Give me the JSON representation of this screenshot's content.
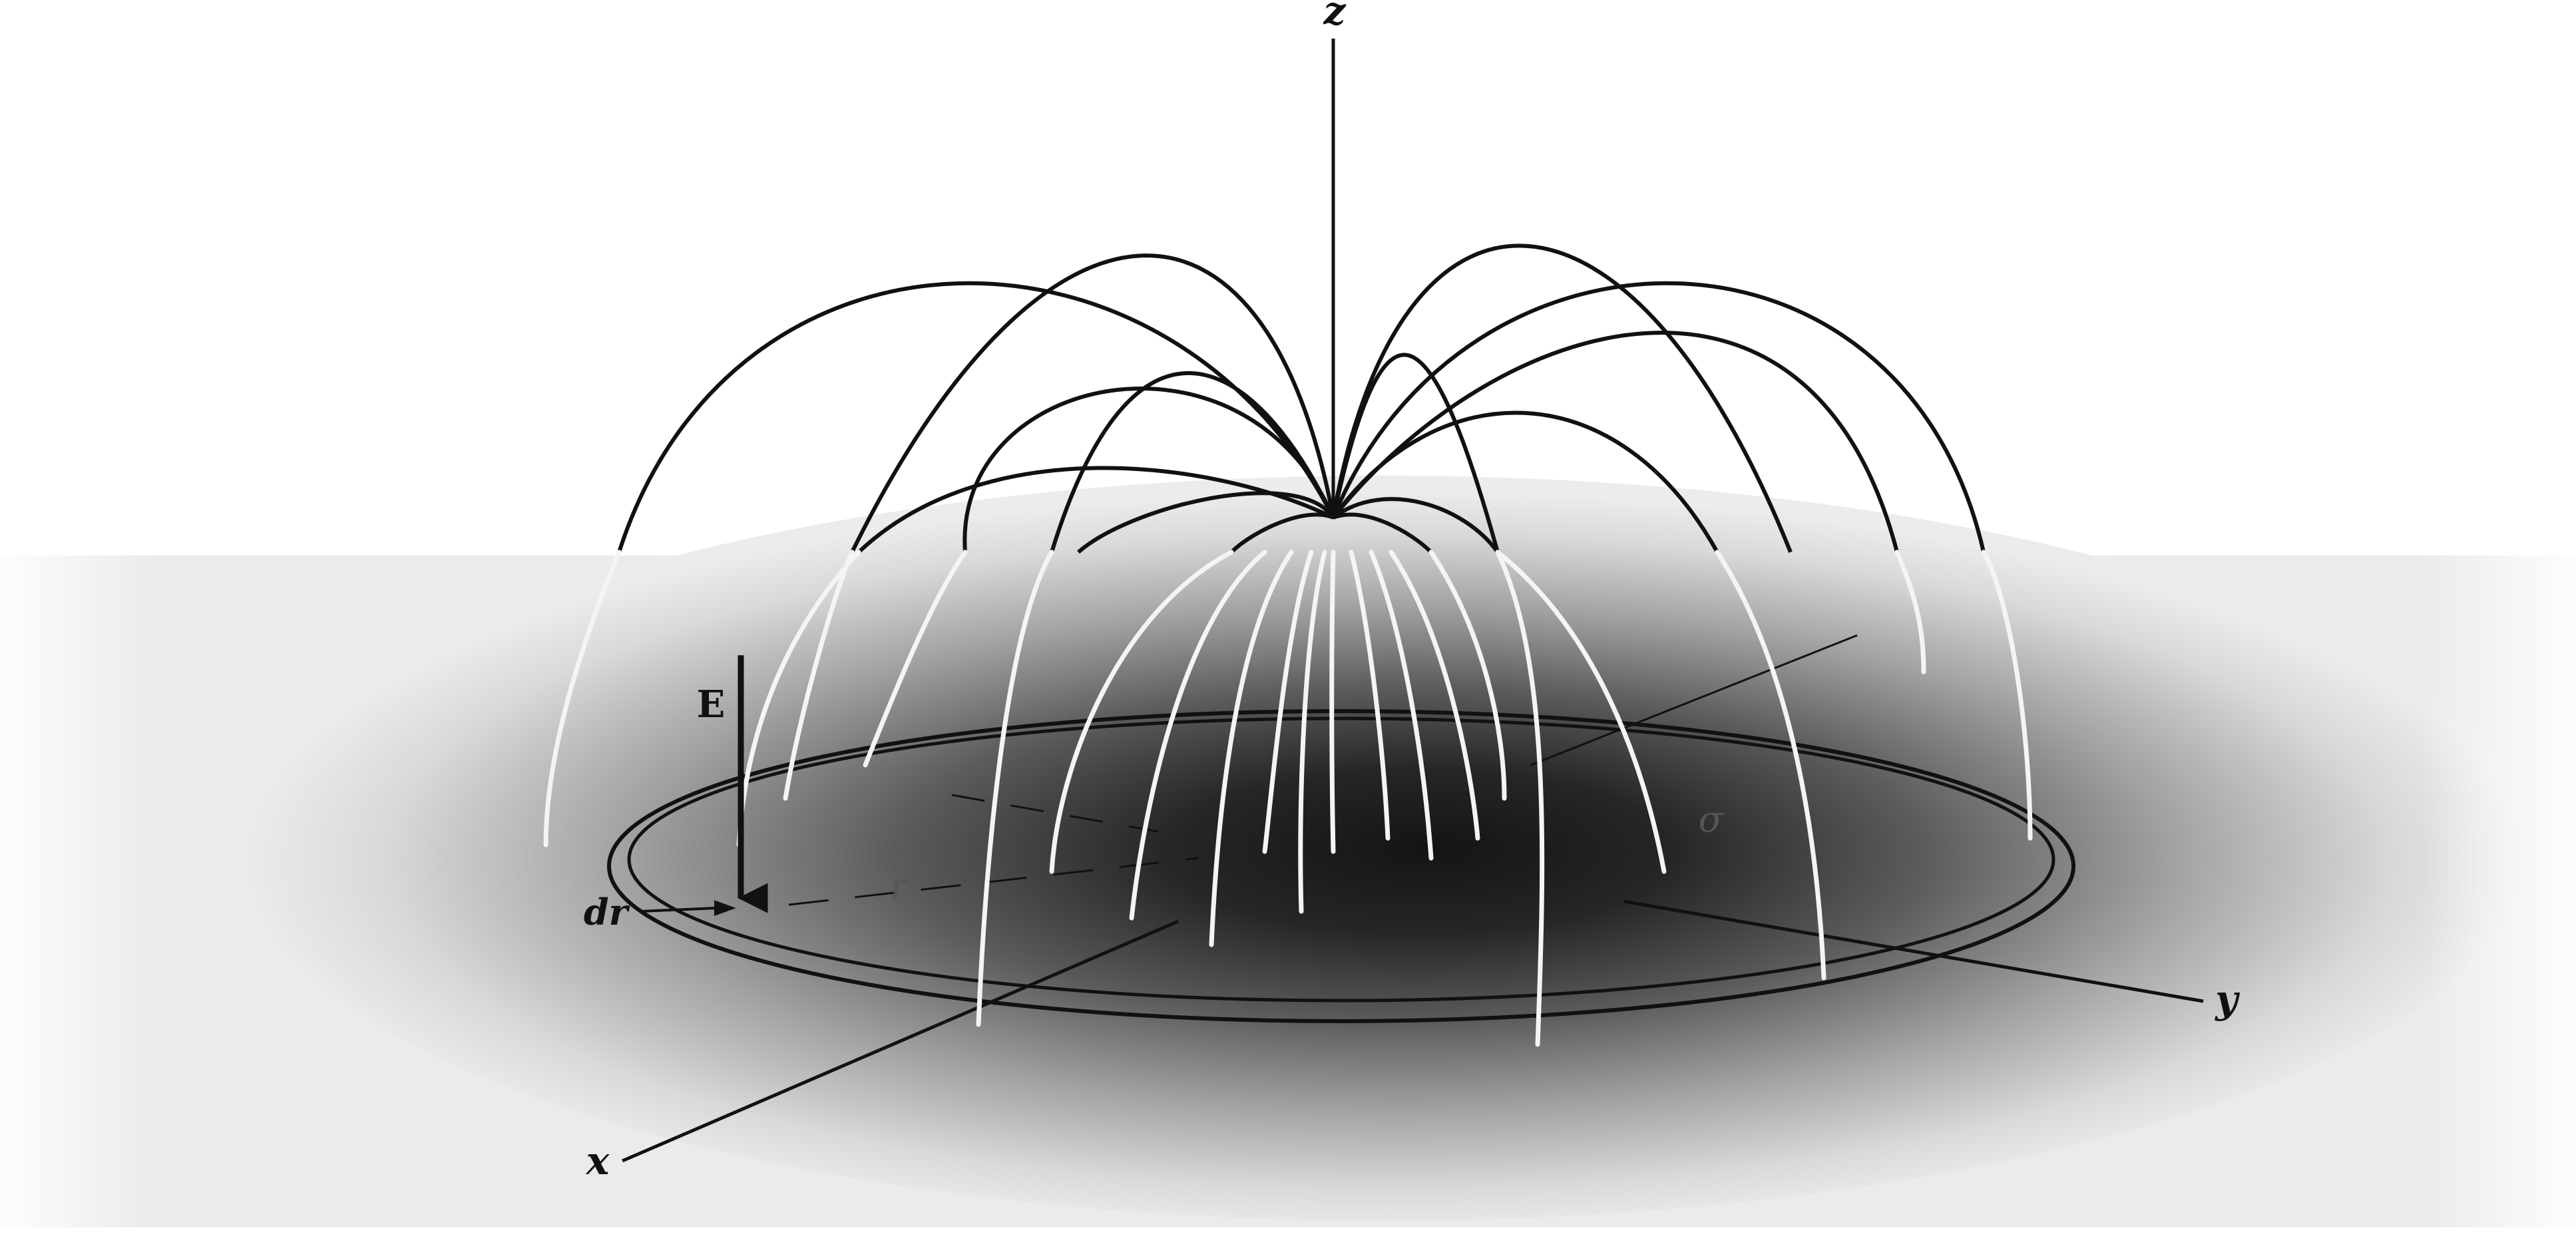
{
  "labels": {
    "z_axis": "z",
    "x_axis": "x",
    "y_axis": "y",
    "field_vector": "E",
    "ring_width": "dr",
    "ring_radius": "r",
    "surface_density": "σ"
  },
  "colors": {
    "background": "#ffffff",
    "plane_light": "#e9e9e9",
    "plane_dark": "#141414",
    "field_line_above": "#111111",
    "field_line_below": "#f4f4f4",
    "axis": "#111111"
  }
}
